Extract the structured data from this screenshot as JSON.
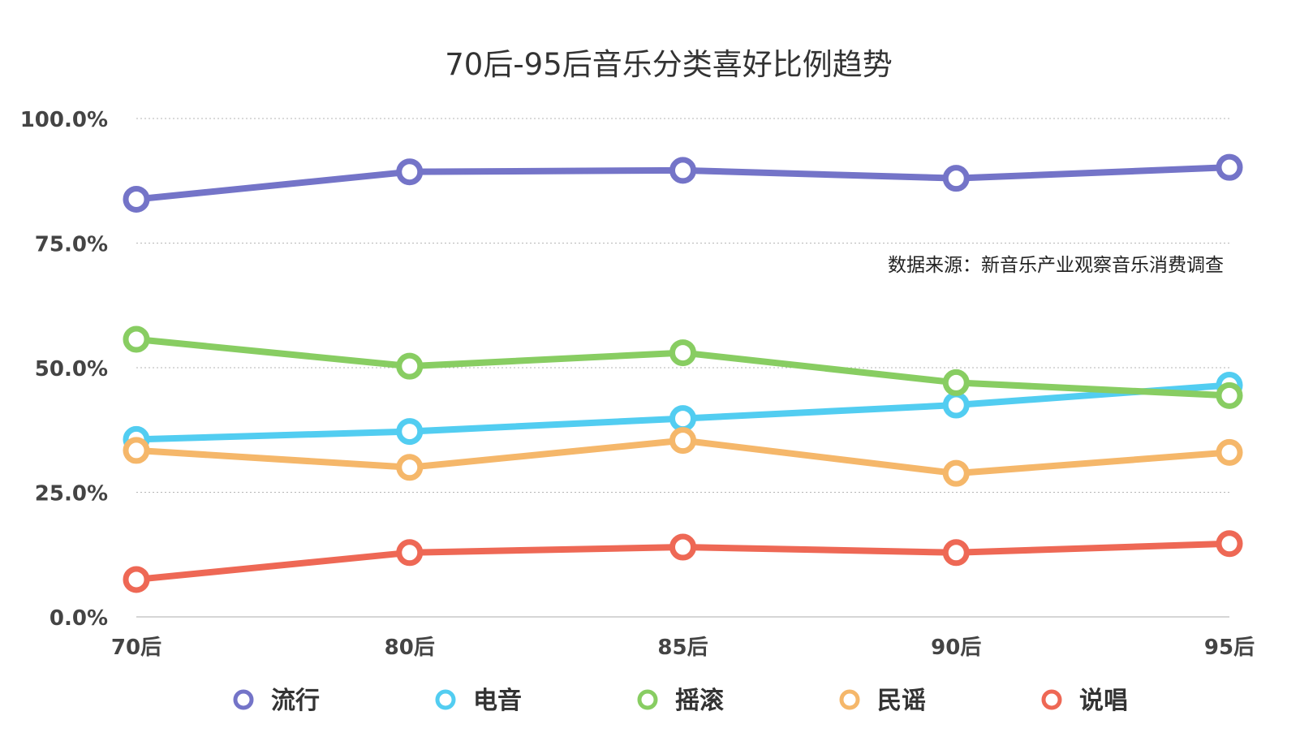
{
  "chart_data": {
    "type": "line",
    "title": "70后-95后音乐分类喜好比例趋势",
    "annotation": "数据来源：新音乐产业观察音乐消费调查",
    "categories": [
      "70后",
      "80后",
      "85后",
      "90后",
      "95后"
    ],
    "y_tick_labels": [
      "0.0%",
      "25.0%",
      "50.0%",
      "75.0%",
      "100.0%"
    ],
    "y_ticks": [
      0,
      25,
      50,
      75,
      100
    ],
    "ylim": [
      0,
      100
    ],
    "grid": true,
    "legend_position": "bottom",
    "series": [
      {
        "name": "流行",
        "color": "#7474c8",
        "values": [
          83.8,
          89.3,
          89.6,
          88.0,
          90.2
        ]
      },
      {
        "name": "电音",
        "color": "#52cdf1",
        "values": [
          35.6,
          37.2,
          39.8,
          42.5,
          46.5
        ]
      },
      {
        "name": "摇滚",
        "color": "#88cd62",
        "values": [
          55.7,
          50.3,
          53.0,
          47.0,
          44.4
        ]
      },
      {
        "name": "民谣",
        "color": "#f5b76a",
        "values": [
          33.4,
          30.0,
          35.4,
          28.8,
          33.0
        ]
      },
      {
        "name": "说唱",
        "color": "#ee6855",
        "values": [
          7.5,
          12.9,
          14.0,
          12.9,
          14.7
        ]
      }
    ]
  }
}
